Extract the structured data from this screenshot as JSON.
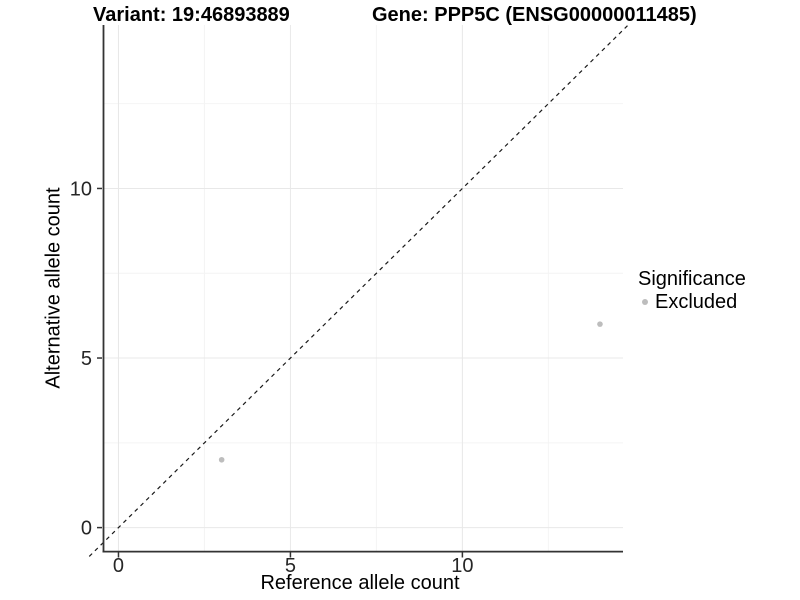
{
  "header": {
    "variant_title": "Variant: 19:46893889",
    "gene_title": "Gene: PPP5C (ENSG00000011485)"
  },
  "legend": {
    "title": "Significance",
    "items": [
      {
        "label": "Excluded",
        "color": "#bdbdbd",
        "marker": "dot"
      }
    ]
  },
  "chart_data": {
    "type": "scatter",
    "title_variant": "Variant: 19:46893889",
    "title_gene": "Gene: PPP5C (ENSG00000011485)",
    "xlabel": "Reference allele count",
    "ylabel": "Alternative allele count",
    "xlim": [
      -0.45,
      14.67
    ],
    "ylim": [
      -0.69,
      14.82
    ],
    "x_ticks": [
      0,
      5,
      10
    ],
    "y_ticks": [
      0,
      5,
      10
    ],
    "x_minor_ticks": [
      2.5,
      7.5,
      12.5
    ],
    "y_minor_ticks": [
      2.5,
      7.5,
      12.5
    ],
    "grid": "major-and-minor",
    "legend_position": "right",
    "series": [
      {
        "name": "Excluded",
        "color": "#bdbdbd",
        "points": [
          [
            3,
            2
          ],
          [
            14,
            6
          ]
        ]
      }
    ],
    "reference_line": {
      "kind": "identity",
      "equation": "y = x",
      "linetype": "dashed",
      "color": "#1a1a1a"
    }
  },
  "style": {
    "point_color": "#bdbdbd",
    "grid_major_color": "#e8e8e8",
    "grid_minor_color": "#f4f4f4",
    "axis_line_color": "#333333",
    "tick_label_color": "#262626",
    "background": "#ffffff"
  }
}
